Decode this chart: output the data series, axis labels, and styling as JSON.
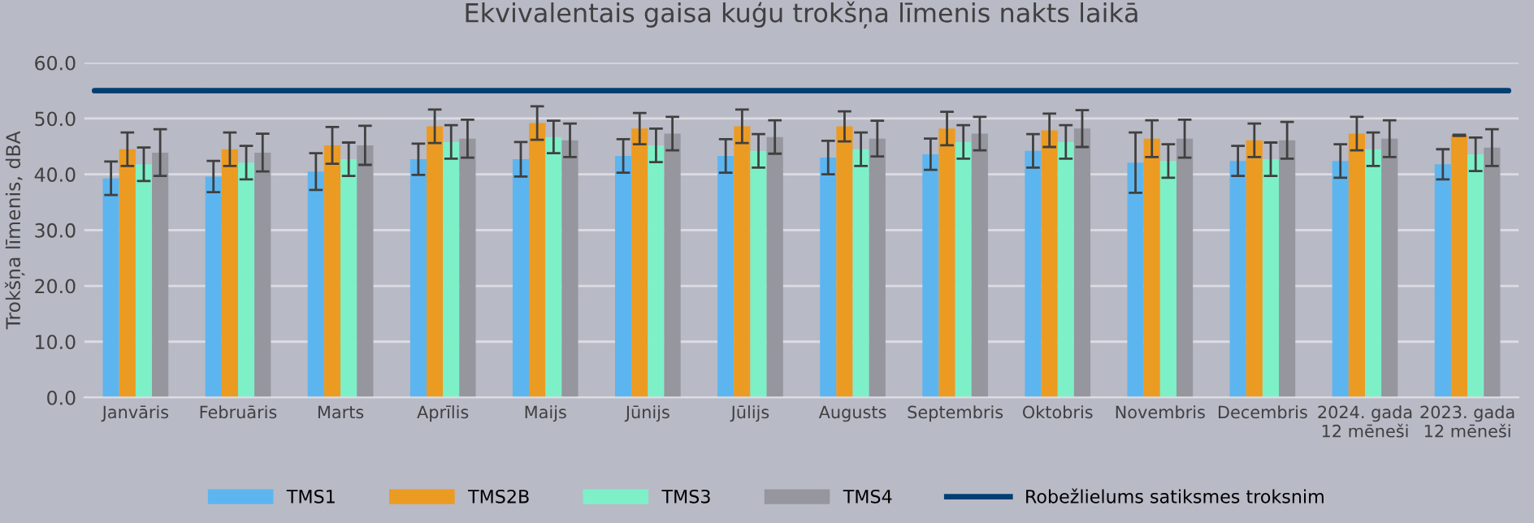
{
  "chart_data": {
    "type": "bar",
    "title": "Ekvivalentais gaisa kuģu trokšņa līmenis nakts laikā",
    "ylabel": "Trokšņa līmenis, dBA",
    "categories": [
      "Janvāris",
      "Februāris",
      "Marts",
      "Aprīlis",
      "Maijs",
      "Jūnijs",
      "Jūlijs",
      "Augusts",
      "Septembris",
      "Oktobris",
      "Novembris",
      "Decembris",
      "2024. gada\n12 mēneši",
      "2023. gada\n12 mēneši"
    ],
    "series": [
      {
        "name": "TMS1",
        "color": "#5db5f0",
        "values": [
          39.3,
          39.6,
          40.5,
          42.7,
          42.7,
          43.3,
          43.3,
          43.0,
          43.6,
          44.2,
          42.1,
          42.4,
          42.4,
          41.8
        ],
        "errors": [
          3,
          2.8,
          3.3,
          2.8,
          3.1,
          3,
          3,
          3,
          2.8,
          3,
          5.4,
          2.7,
          3,
          2.7
        ]
      },
      {
        "name": "TMS2B",
        "color": "#ec9b22",
        "values": [
          44.5,
          44.5,
          45.2,
          48.6,
          49.2,
          48.2,
          48.6,
          48.6,
          48.2,
          47.9,
          46.4,
          46.1,
          47.3,
          47.0
        ],
        "errors": [
          3,
          3,
          3.3,
          3,
          3,
          2.8,
          3,
          2.7,
          3,
          3,
          3.3,
          3,
          3,
          0.1
        ]
      },
      {
        "name": "TMS3",
        "color": "#7ef0c8",
        "values": [
          41.8,
          42.1,
          42.7,
          45.8,
          46.7,
          45.2,
          44.2,
          44.5,
          45.8,
          45.8,
          42.4,
          42.7,
          44.5,
          43.6
        ],
        "errors": [
          3,
          3,
          3,
          3,
          2.9,
          3,
          3,
          3,
          3,
          3,
          3,
          3,
          3,
          3
        ]
      },
      {
        "name": "TMS4",
        "color": "#96969f",
        "values": [
          43.9,
          43.9,
          45.2,
          46.4,
          46.1,
          47.3,
          46.7,
          46.4,
          47.3,
          48.2,
          46.4,
          46.1,
          46.4,
          44.8
        ],
        "errors": [
          4.2,
          3.4,
          3.5,
          3.4,
          3,
          3,
          3,
          3.2,
          3,
          3.3,
          3.4,
          3.3,
          3.3,
          3.3
        ]
      }
    ],
    "ref_lines": [
      {
        "axis": "y",
        "value": 55.0,
        "label": "Robežlielums satiksmes troksnim",
        "color": "#003f72"
      }
    ],
    "ylim": [
      0,
      60
    ],
    "yticks": [
      {
        "value": 0,
        "label": "0.0"
      },
      {
        "value": 10,
        "label": "10.0"
      },
      {
        "value": 20,
        "label": "20.0"
      },
      {
        "value": 30,
        "label": "30.0"
      },
      {
        "value": 40,
        "label": "40.0"
      },
      {
        "value": 50,
        "label": "50.0"
      },
      {
        "value": 60,
        "label": "60.0"
      }
    ],
    "grid": "y",
    "legend": "bottom"
  }
}
